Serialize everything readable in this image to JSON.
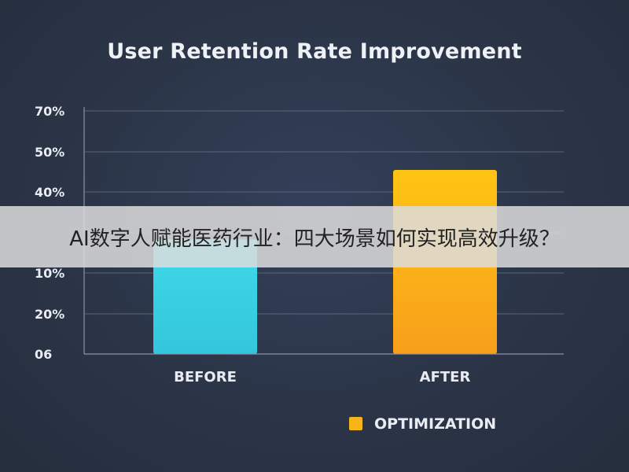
{
  "banner": {
    "text": "AI数字人赋能医药行业：四大场景如何实现高效升级？"
  },
  "chart_data": {
    "type": "bar",
    "title": "User Retention Rate Improvement",
    "categories": [
      "BEFORE",
      "AFTER"
    ],
    "values": [
      33,
      53
    ],
    "y_tick_labels": [
      "06",
      "20%",
      "10%",
      "",
      "40%",
      "50%",
      "70%"
    ],
    "ylim": [
      0,
      70
    ],
    "grid": true,
    "legend": {
      "position": "bottom-right",
      "entries": [
        {
          "label": "OPTIMIZATION",
          "color": "#f7b51a"
        }
      ]
    },
    "colors": {
      "before": "#3fd6e6",
      "after": "#f7b51a"
    }
  }
}
